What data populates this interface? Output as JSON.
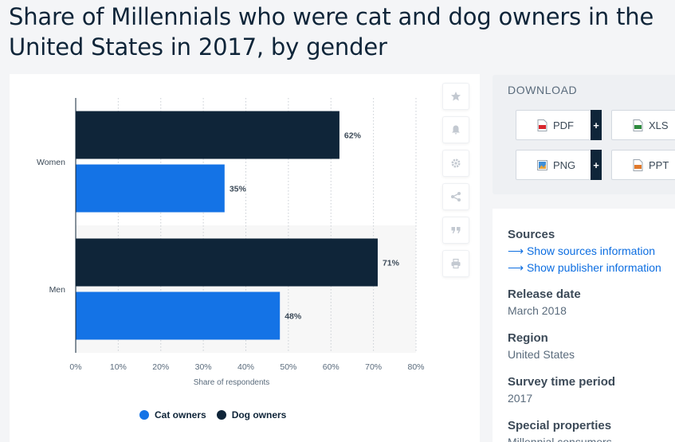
{
  "page": {
    "title": "Share of Millennials who were cat and dog owners in the United States in 2017, by gender"
  },
  "download": {
    "heading": "DOWNLOAD",
    "buttons": [
      {
        "label": "PDF",
        "icon": "pdf-file-icon",
        "has_plus": true
      },
      {
        "label": "XLS",
        "icon": "xls-file-icon",
        "has_plus": false
      },
      {
        "label": "PNG",
        "icon": "png-file-icon",
        "has_plus": true
      },
      {
        "label": "PPT",
        "icon": "ppt-file-icon",
        "has_plus": false
      }
    ],
    "plus": "+"
  },
  "tools": [
    "star-icon",
    "bell-icon",
    "gear-icon",
    "share-icon",
    "quote-icon",
    "print-icon"
  ],
  "info": {
    "sources_label": "Sources",
    "sources_link1": "Show sources information",
    "sources_link2": "Show publisher information",
    "release_label": "Release date",
    "release_value": "March 2018",
    "region_label": "Region",
    "region_value": "United States",
    "survey_label": "Survey time period",
    "survey_value": "2017",
    "special_label": "Special properties",
    "special_value": "Millennial consumers"
  },
  "colors": {
    "cat": "#1473e6",
    "dog": "#0f2539",
    "accent": "#0d6ee1"
  },
  "chart_data": {
    "type": "bar",
    "orientation": "horizontal",
    "categories": [
      "Women",
      "Men"
    ],
    "series": [
      {
        "name": "Dog owners",
        "values": [
          62,
          71
        ],
        "color": "#0f2539"
      },
      {
        "name": "Cat owners",
        "values": [
          35,
          48
        ],
        "color": "#1473e6"
      }
    ],
    "value_suffix": "%",
    "xlabel": "Share of respondents",
    "xlim": [
      0,
      80
    ],
    "xticks": [
      "0%",
      "10%",
      "20%",
      "30%",
      "40%",
      "50%",
      "60%",
      "70%",
      "80%"
    ],
    "grid": true,
    "legend": [
      {
        "name": "Cat owners",
        "color": "#1473e6"
      },
      {
        "name": "Dog owners",
        "color": "#0f2539"
      }
    ],
    "legend_position": "bottom"
  }
}
